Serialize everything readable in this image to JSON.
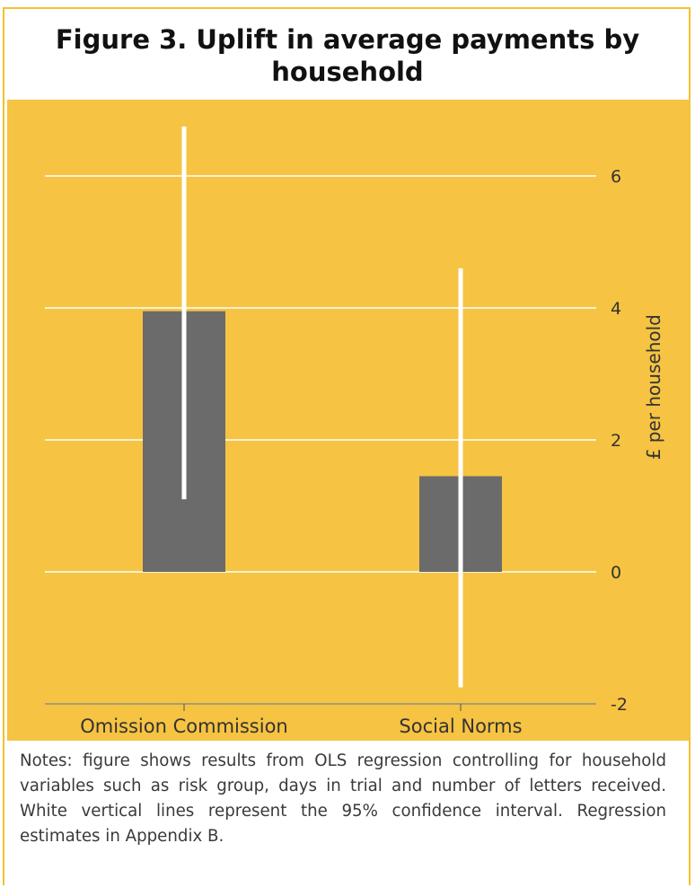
{
  "colors": {
    "panel_background": "#f6c342",
    "bar": "#6b6b6b",
    "error_bar": "#ffffff",
    "gridline": "#ffffff",
    "border": "#f2c230",
    "text": "#333333"
  },
  "chart_data": {
    "type": "bar",
    "title": "Figure 3. Uplift in average payments by household",
    "categories": [
      "Omission Commission",
      "Social Norms"
    ],
    "values": [
      3.95,
      1.45
    ],
    "ci_low": [
      1.1,
      -1.75
    ],
    "ci_high": [
      6.75,
      4.6
    ],
    "ylabel": "£ per household",
    "xlabel": "",
    "ylim": [
      -2,
      7
    ],
    "yticks": [
      -2,
      0,
      2,
      4,
      6
    ],
    "ytick_labels": [
      "-2",
      "0",
      "2",
      "4",
      "6"
    ],
    "y_axis_side": "right",
    "grid": true
  },
  "notes": "Notes: figure shows results from OLS regression controlling for household variables such as risk group, days in trial and number of letters received.   White vertical lines represent the 95% confidence interval. Regression estimates in Appendix B."
}
